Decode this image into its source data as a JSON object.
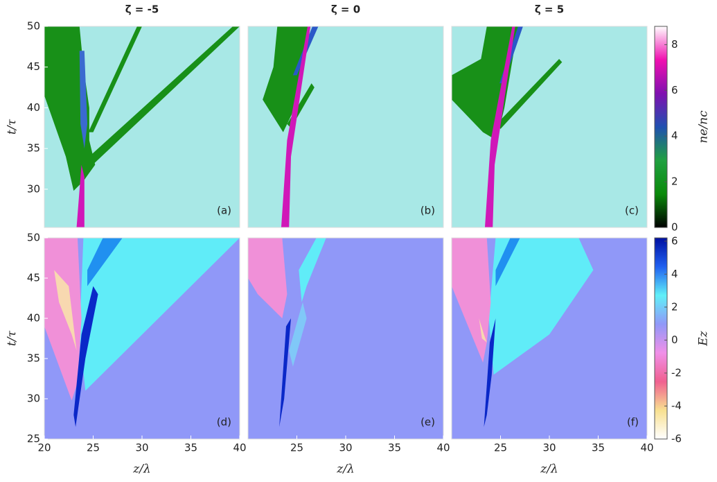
{
  "chart_data": [
    {
      "type": "heatmap",
      "title": "ζ = -5",
      "label": "(a)",
      "ylabel": "t/τ",
      "xlim": [
        20,
        40
      ],
      "ylim": [
        25.3,
        50
      ],
      "yticks": [
        30,
        35,
        40,
        45,
        50
      ]
    },
    {
      "type": "heatmap",
      "title": "ζ = 0",
      "label": "(b)",
      "xlim": [
        20,
        40
      ],
      "ylim": [
        25.3,
        50
      ]
    },
    {
      "type": "heatmap",
      "title": "ζ = 5",
      "label": "(c)",
      "xlim": [
        20,
        40
      ],
      "ylim": [
        25.3,
        50
      ]
    },
    {
      "type": "heatmap",
      "label": "(d)",
      "ylabel": "t/τ",
      "xlabel": "z/λ",
      "xlim": [
        20,
        40
      ],
      "ylim": [
        25,
        50
      ],
      "xticks": [
        20,
        25,
        30,
        35,
        40
      ],
      "yticks": [
        25,
        30,
        35,
        40,
        45,
        50
      ]
    },
    {
      "type": "heatmap",
      "label": "(e)",
      "xlabel": "z/λ",
      "xlim": [
        20,
        40
      ],
      "ylim": [
        25,
        50
      ],
      "xticks": [
        25,
        30,
        35,
        40
      ]
    },
    {
      "type": "heatmap",
      "label": "(f)",
      "xlabel": "z/λ",
      "xlim": [
        20,
        40
      ],
      "ylim": [
        25,
        50
      ],
      "xticks": [
        25,
        30,
        35,
        40
      ]
    },
    {
      "type": "colorbar",
      "label": "ne/nc",
      "clim": [
        0,
        8.8
      ],
      "ticks": [
        0,
        2,
        4,
        6,
        8
      ],
      "colors": [
        "#000000",
        "#0a8a0a",
        "#20a040",
        "#2050b0",
        "#8010b0",
        "#f010b0",
        "#ffffff"
      ]
    },
    {
      "type": "colorbar",
      "label": "Ez",
      "clim": [
        -6,
        6.2
      ],
      "ticks": [
        -6,
        -4,
        -2,
        0,
        2,
        4,
        6
      ],
      "colors": [
        "#ffffff",
        "#f8e090",
        "#f06090",
        "#f090e8",
        "#9098f8",
        "#60f0f8",
        "#2060f0",
        "#0010a0"
      ]
    }
  ]
}
